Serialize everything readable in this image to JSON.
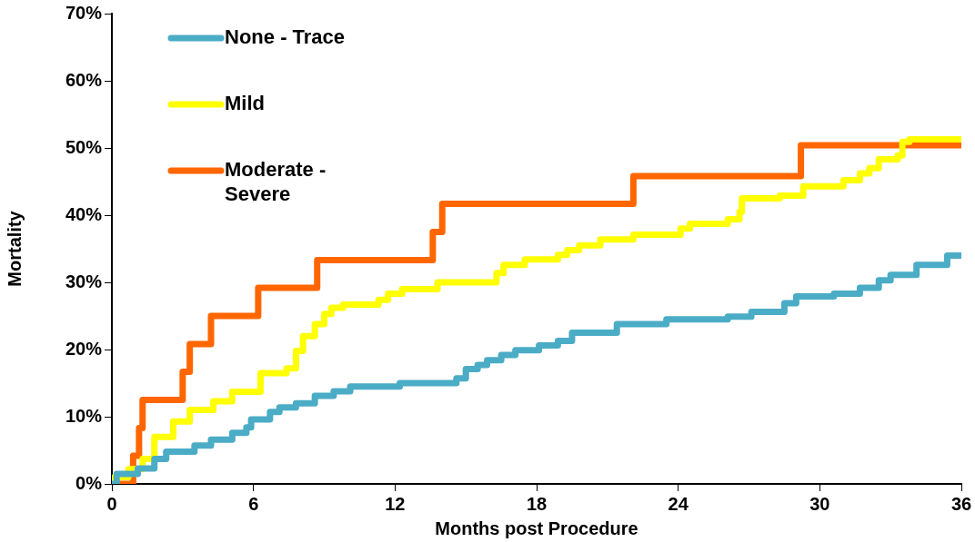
{
  "chart_data": {
    "type": "step",
    "xlabel": "Months post Procedure",
    "ylabel": "Mortality",
    "xlim": [
      0,
      36
    ],
    "xticks": [
      0,
      6,
      12,
      18,
      24,
      30,
      36
    ],
    "ylim": [
      0,
      70
    ],
    "yticks": [
      {
        "value": 0,
        "label": "0%"
      },
      {
        "value": 10,
        "label": "10%"
      },
      {
        "value": 20,
        "label": "20%"
      },
      {
        "value": 30,
        "label": "30%"
      },
      {
        "value": 40,
        "label": "40%"
      },
      {
        "value": 50,
        "label": "50%"
      },
      {
        "value": 60,
        "label": "60%"
      },
      {
        "value": 70,
        "label": "70%"
      }
    ],
    "grid": false,
    "legend": "top left",
    "marker": "none",
    "line_style": "solid",
    "series": [
      {
        "name": "None - Trace",
        "color": "#4bacc6",
        "x": [
          0,
          0.2,
          1.1,
          1.8,
          2.3,
          3.5,
          4.2,
          5.1,
          5.7,
          5.9,
          6.7,
          7.1,
          7.8,
          8.6,
          9.4,
          10.1,
          12.2,
          14.6,
          15.0,
          15.5,
          15.9,
          16.5,
          17.1,
          18.1,
          18.9,
          19.5,
          21.4,
          23.5,
          26.1,
          27.1,
          28.5,
          29.0,
          30.6,
          31.7,
          32.5,
          33.0,
          34.1,
          35.4,
          36
        ],
        "values": [
          0,
          1.5,
          2.3,
          3.7,
          4.8,
          5.7,
          6.6,
          7.6,
          8.4,
          9.6,
          10.7,
          11.4,
          12,
          13.1,
          13.8,
          14.5,
          15,
          15.7,
          17.1,
          17.7,
          18.4,
          19.2,
          19.9,
          20.6,
          21.3,
          22.5,
          23.8,
          24.5,
          24.9,
          25.6,
          26.9,
          27.9,
          28.3,
          29.2,
          30.3,
          31.1,
          32.6,
          34,
          34
        ]
      },
      {
        "name": "Mild",
        "color": "#ffff00",
        "x": [
          0,
          0.1,
          0.7,
          1.3,
          1.8,
          2.6,
          3.3,
          4.3,
          5.1,
          6.3,
          7.4,
          7.8,
          8.1,
          8.6,
          9.0,
          9.3,
          9.8,
          11.3,
          11.7,
          12.3,
          13.8,
          16.3,
          16.6,
          17.5,
          18.9,
          19.3,
          19.8,
          20.7,
          22.1,
          24.1,
          24.5,
          26.1,
          26.6,
          26.7,
          28.3,
          29.3,
          31.0,
          31.7,
          32.1,
          32.5,
          33.3,
          33.5,
          33.8,
          36
        ],
        "values": [
          0,
          1,
          2.2,
          3.7,
          7,
          9.3,
          11,
          12.3,
          13.7,
          16.5,
          17.2,
          19.8,
          22,
          23.8,
          25.3,
          26.2,
          26.7,
          27.4,
          28.3,
          29,
          30,
          31.4,
          32.6,
          33.4,
          34.1,
          34.8,
          35.5,
          36.4,
          37.1,
          38,
          38.7,
          39.4,
          40.5,
          42.5,
          42.9,
          44.3,
          45.2,
          46.2,
          47,
          48.3,
          48.9,
          50.9,
          51.3,
          51.3
        ]
      },
      {
        "name": "Moderate - Severe",
        "color": "#ff6600",
        "x": [
          0,
          0.9,
          1.15,
          1.3,
          3.0,
          3.3,
          4.2,
          6.2,
          8.7,
          13.6,
          14.0,
          22.1,
          29.2,
          36
        ],
        "values": [
          0,
          4.2,
          8.3,
          12.5,
          16.7,
          20.8,
          25,
          29.2,
          33.3,
          37.5,
          41.7,
          45.8,
          50.4,
          50.4
        ]
      }
    ]
  }
}
